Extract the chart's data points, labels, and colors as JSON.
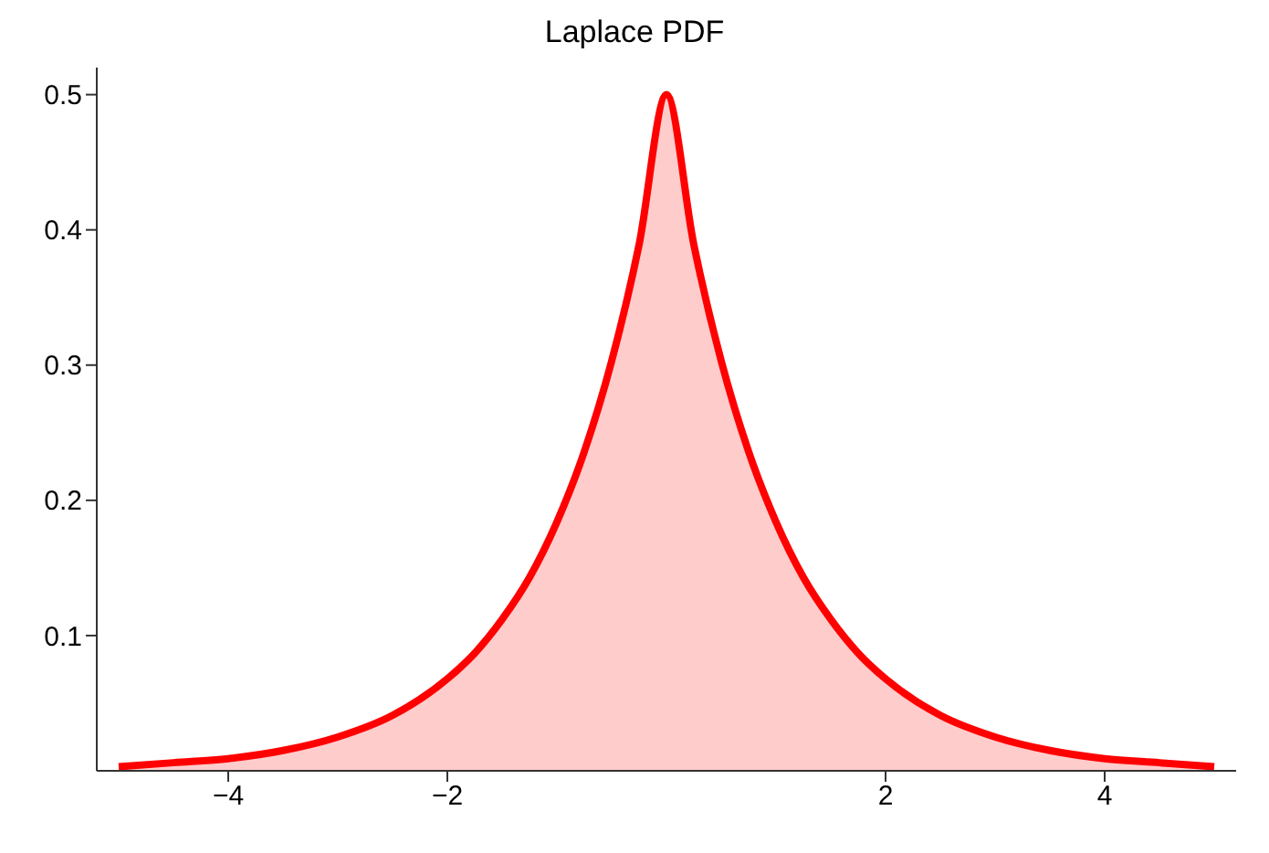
{
  "chart_data": {
    "type": "area",
    "title": "Laplace PDF",
    "x": [
      -5,
      -4.5,
      -4,
      -3.5,
      -3,
      -2.5,
      -2,
      -1.75,
      -1.5,
      -1.25,
      -1,
      -0.75,
      -0.5,
      -0.25,
      0,
      0.25,
      0.5,
      0.75,
      1,
      1.25,
      1.5,
      1.75,
      2,
      2.5,
      3,
      3.5,
      4,
      4.5,
      5
    ],
    "series": [
      {
        "color": "#ff0000",
        "values": [
          0.003,
          0.006,
          0.009,
          0.015,
          0.025,
          0.041,
          0.068,
          0.087,
          0.112,
          0.143,
          0.184,
          0.236,
          0.303,
          0.389,
          0.5,
          0.389,
          0.303,
          0.236,
          0.184,
          0.143,
          0.112,
          0.087,
          0.068,
          0.041,
          0.025,
          0.015,
          0.009,
          0.006,
          0.003
        ]
      }
    ],
    "xlim": [
      -5.2,
      5.2
    ],
    "ylim": [
      0,
      0.52
    ],
    "xticks": [
      -4,
      -2,
      2,
      4
    ],
    "yticks": [
      0.1,
      0.2,
      0.3,
      0.4,
      0.5
    ],
    "grid": false,
    "marker": "none",
    "line_style": "solid"
  }
}
